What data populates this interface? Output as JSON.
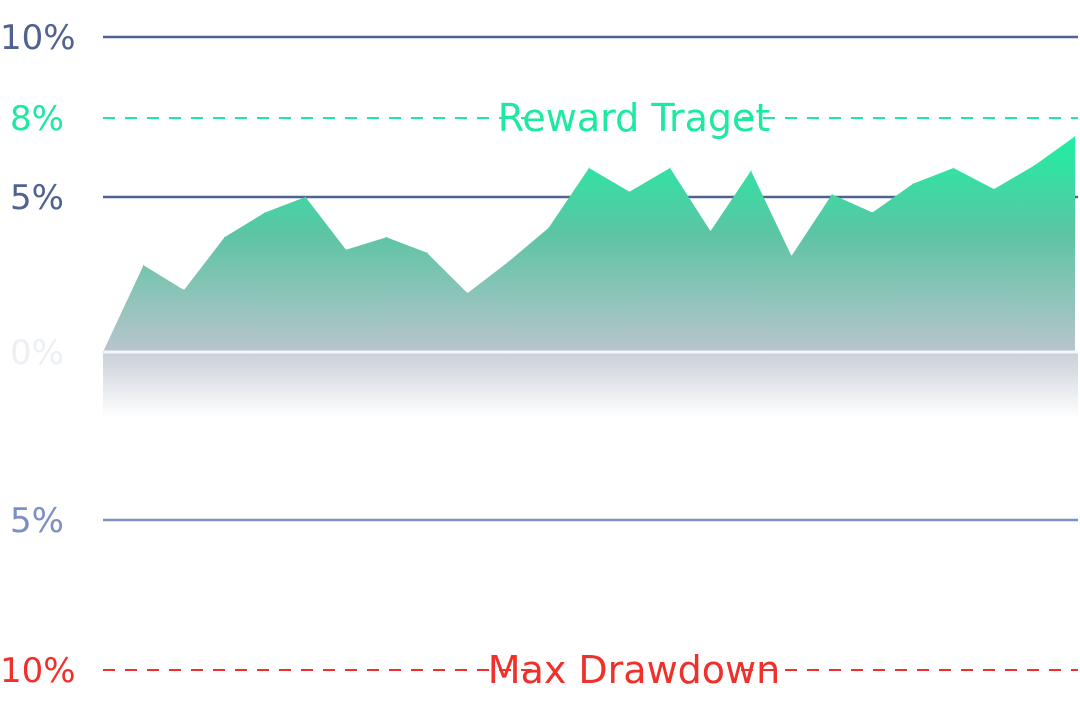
{
  "chart_data": {
    "type": "area",
    "title": "",
    "xlabel": "",
    "ylabel": "",
    "ylim": [
      -10,
      10
    ],
    "grid": true,
    "legend": "none",
    "y_ticks": [
      {
        "value": 10,
        "label": "10%",
        "style": "solid",
        "color": "#50628f"
      },
      {
        "value": 8,
        "label": "8%",
        "style": "dashed",
        "color": "#1de9a0"
      },
      {
        "value": 5,
        "label": "5%",
        "style": "solid",
        "color": "#50628f"
      },
      {
        "value": 0,
        "label": "0%",
        "style": "baseline",
        "color": "#e8ebf0"
      },
      {
        "value": -5,
        "label": "5%",
        "style": "solid",
        "color": "#7b8fc4"
      },
      {
        "value": -10,
        "label": "10%",
        "style": "dashed",
        "color": "#f0302a"
      }
    ],
    "annotations": [
      {
        "text": "Reward Traget",
        "at_value": 8,
        "color": "#1de9a0"
      },
      {
        "text": "Max Drawdown",
        "at_value": -10,
        "color": "#f0302a"
      }
    ],
    "series": [
      {
        "values": [
          0,
          2.8,
          2.0,
          3.7,
          4.5,
          5.0,
          3.3,
          3.7,
          3.2,
          1.9,
          2.9,
          4.0,
          6.1,
          5.2,
          6.1,
          3.9,
          6.0,
          3.1,
          5.1,
          4.5,
          5.5,
          6.1,
          5.3,
          6.2,
          7.3
        ],
        "color": "#1de9a0"
      }
    ]
  }
}
